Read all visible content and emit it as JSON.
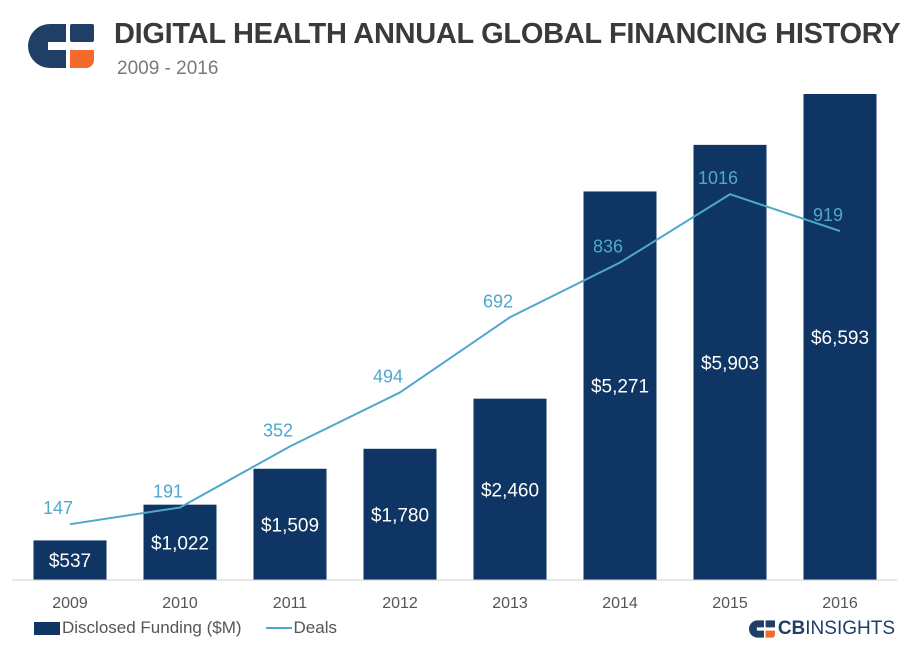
{
  "header": {
    "title": "DIGITAL HEALTH ANNUAL GLOBAL FINANCING HISTORY",
    "subtitle": "2009 - 2016",
    "logo": "cb-insights-logo-icon"
  },
  "colors": {
    "bar": "#0e3563",
    "line": "#4fa8cc",
    "bar_label": "#ffffff",
    "axis_label": "#555555",
    "logo_navy": "#1f3f66",
    "logo_orange": "#f26b2d"
  },
  "chart_data": {
    "type": "bar",
    "title": "DIGITAL HEALTH ANNUAL GLOBAL FINANCING HISTORY",
    "subtitle": "2009 - 2016",
    "categories": [
      "2009",
      "2010",
      "2011",
      "2012",
      "2013",
      "2014",
      "2015",
      "2016"
    ],
    "series": [
      {
        "name": "Disclosed Funding ($M)",
        "type": "bar",
        "axis": "left",
        "values": [
          537,
          1022,
          1509,
          1780,
          2460,
          5271,
          5903,
          6593
        ],
        "labels": [
          "$537",
          "$1,022",
          "$1,509",
          "$1,780",
          "$2,460",
          "$5,271",
          "$5,903",
          "$6,593"
        ]
      },
      {
        "name": "Deals",
        "type": "line",
        "axis": "right",
        "values": [
          147,
          191,
          352,
          494,
          692,
          836,
          1016,
          919
        ],
        "labels": [
          "147",
          "191",
          "352",
          "494",
          "692",
          "836",
          "1016",
          "919"
        ]
      }
    ],
    "ylim_left": [
      0,
      6593
    ],
    "ylim_right": [
      0,
      1280
    ],
    "xlabel": "",
    "ylabel": "",
    "grid": false,
    "legend_position": "bottom-left"
  },
  "legend": {
    "bar_label": "Disclosed Funding ($M)",
    "line_label": "Deals"
  },
  "footer": {
    "brand_cb": "CB",
    "brand_rest": "INSIGHTS"
  }
}
